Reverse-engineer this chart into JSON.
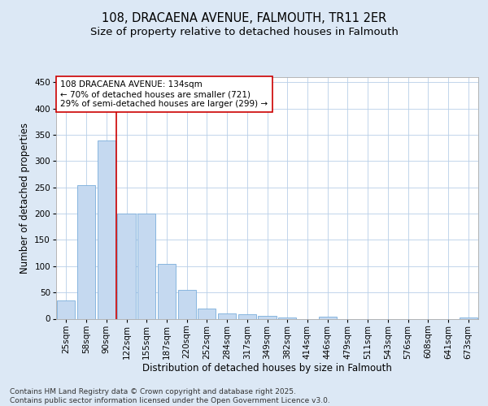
{
  "title": "108, DRACAENA AVENUE, FALMOUTH, TR11 2ER",
  "subtitle": "Size of property relative to detached houses in Falmouth",
  "xlabel": "Distribution of detached houses by size in Falmouth",
  "ylabel": "Number of detached properties",
  "categories": [
    "25sqm",
    "58sqm",
    "90sqm",
    "122sqm",
    "155sqm",
    "187sqm",
    "220sqm",
    "252sqm",
    "284sqm",
    "317sqm",
    "349sqm",
    "382sqm",
    "414sqm",
    "446sqm",
    "479sqm",
    "511sqm",
    "543sqm",
    "576sqm",
    "608sqm",
    "641sqm",
    "673sqm"
  ],
  "values": [
    35,
    255,
    340,
    200,
    200,
    105,
    55,
    20,
    10,
    8,
    5,
    2,
    0,
    4,
    0,
    0,
    0,
    0,
    0,
    0,
    3
  ],
  "bar_color": "#c5d9f0",
  "bar_edge_color": "#7aaddb",
  "vline_index": 3,
  "vline_color": "#cc0000",
  "annotation_text": "108 DRACAENA AVENUE: 134sqm\n← 70% of detached houses are smaller (721)\n29% of semi-detached houses are larger (299) →",
  "annotation_box_facecolor": "#ffffff",
  "annotation_box_edgecolor": "#cc0000",
  "ylim": [
    0,
    460
  ],
  "yticks": [
    0,
    50,
    100,
    150,
    200,
    250,
    300,
    350,
    400,
    450
  ],
  "plot_bg_color": "#ffffff",
  "fig_bg_color": "#dce8f5",
  "footer_text": "Contains HM Land Registry data © Crown copyright and database right 2025.\nContains public sector information licensed under the Open Government Licence v3.0.",
  "title_fontsize": 10.5,
  "subtitle_fontsize": 9.5,
  "axis_label_fontsize": 8.5,
  "tick_fontsize": 7.5,
  "annotation_fontsize": 7.5,
  "footer_fontsize": 6.5
}
